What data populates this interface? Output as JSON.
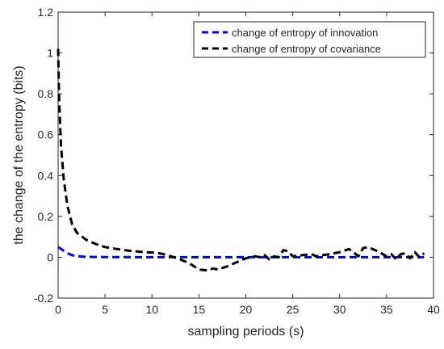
{
  "chart_data": {
    "type": "line",
    "xlabel": "sampling periods (s)",
    "ylabel": "the change of the entropy (bits)",
    "xlim": [
      0,
      40
    ],
    "ylim": [
      -0.2,
      1.2
    ],
    "xticks": [
      "0",
      "5",
      "10",
      "15",
      "20",
      "25",
      "30",
      "35",
      "40"
    ],
    "yticks": [
      "-0.2",
      "0",
      "0.2",
      "0.4",
      "0.6",
      "0.8",
      "1",
      "1.2"
    ],
    "grid": false,
    "legend_position": "top-right",
    "series": [
      {
        "name": "change of entropy of innovation",
        "color": "#0000ff",
        "line_style": "dashed",
        "points": [
          [
            0,
            0.05
          ],
          [
            0.5,
            0.035
          ],
          [
            1,
            0.02
          ],
          [
            1.5,
            0.01
          ],
          [
            2,
            0.005
          ],
          [
            3,
            0.002
          ],
          [
            5,
            0.001
          ],
          [
            10,
            0.0
          ],
          [
            20,
            0.0
          ],
          [
            30,
            0.0
          ],
          [
            39,
            0.0
          ]
        ]
      },
      {
        "name": "change of entropy of covariance",
        "color": "#000000",
        "line_style": "dashed",
        "points": [
          [
            0,
            1.02
          ],
          [
            0.1,
            0.78
          ],
          [
            0.3,
            0.55
          ],
          [
            0.6,
            0.38
          ],
          [
            1,
            0.25
          ],
          [
            1.5,
            0.16
          ],
          [
            2,
            0.12
          ],
          [
            3,
            0.085
          ],
          [
            4,
            0.065
          ],
          [
            5,
            0.05
          ],
          [
            6,
            0.042
          ],
          [
            7,
            0.035
          ],
          [
            8,
            0.03
          ],
          [
            9,
            0.026
          ],
          [
            10,
            0.023
          ],
          [
            11,
            0.018
          ],
          [
            12,
            0.005
          ],
          [
            13,
            -0.01
          ],
          [
            14,
            -0.03
          ],
          [
            15,
            -0.06
          ],
          [
            16,
            -0.065
          ],
          [
            16.5,
            -0.055
          ],
          [
            17,
            -0.06
          ],
          [
            18,
            -0.045
          ],
          [
            19,
            -0.025
          ],
          [
            20,
            -0.005
          ],
          [
            21,
            0.005
          ],
          [
            21.5,
            0.0
          ],
          [
            22,
            0.01
          ],
          [
            22.5,
            -0.01
          ],
          [
            23,
            0.005
          ],
          [
            23.5,
            0.0
          ],
          [
            24,
            0.035
          ],
          [
            24.5,
            0.03
          ],
          [
            25,
            0.005
          ],
          [
            26,
            0.01
          ],
          [
            27,
            0.015
          ],
          [
            27.5,
            0.005
          ],
          [
            28,
            0.01
          ],
          [
            29,
            0.015
          ],
          [
            30,
            0.025
          ],
          [
            31,
            0.04
          ],
          [
            32,
            0.005
          ],
          [
            32.5,
            0.045
          ],
          [
            33,
            0.05
          ],
          [
            34,
            0.03
          ],
          [
            35,
            0.005
          ],
          [
            35.5,
            0.015
          ],
          [
            36,
            -0.01
          ],
          [
            36.5,
            0.015
          ],
          [
            37,
            0.02
          ],
          [
            37.5,
            -0.005
          ],
          [
            38,
            0.025
          ],
          [
            38.5,
            0.0
          ],
          [
            39,
            0.02
          ]
        ]
      }
    ]
  }
}
